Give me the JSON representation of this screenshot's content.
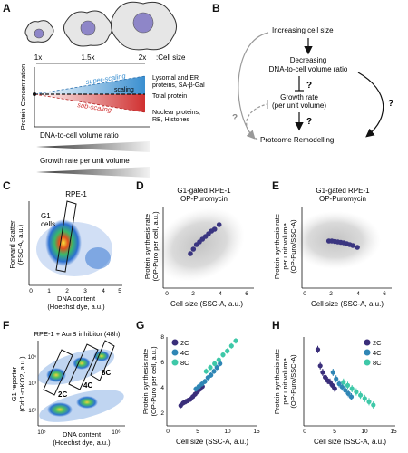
{
  "panels": {
    "a": "A",
    "b": "B",
    "c": "C",
    "d": "D",
    "e": "E",
    "f": "F",
    "g": "G",
    "h": "H"
  },
  "panel_a": {
    "sizes": [
      "1x",
      "1.5x",
      "2x"
    ],
    "cell_size_label": ":Cell size",
    "ylabel": "Protein Concentration",
    "super_scaling": "super-scaling",
    "scaling": "scaling",
    "sub_scaling": "sub-scaling",
    "label_super_1": "Lysomal and ER",
    "label_super_2": "proteins, SA-β-Gal",
    "label_scaling": "Total protein",
    "label_sub_1": "Nuclear proteins,",
    "label_sub_2": "RB, Histones",
    "bar1": "DNA-to-cell volume ratio",
    "bar2": "Growth rate per unit volume",
    "colors": {
      "super": "#3a8fd0",
      "sub": "#d03030"
    }
  },
  "panel_b": {
    "node1": "Increasing cell size",
    "node2_1": "Decreasing",
    "node2_2": "DNA-to-cell volume ratio",
    "node3_1": "Growth rate",
    "node3_2": "(per unit volume)",
    "node4": "Proteome Remodelling",
    "q": "?"
  },
  "panel_c": {
    "title": "RPE-1",
    "gate": "G1",
    "gate2": "cells",
    "xlabel_1": "DNA content",
    "xlabel_2": "(Hoechst dye, a.u.)",
    "ylabel_1": "Forward Scatter",
    "ylabel_2": "(FSC-A, a.u.)",
    "xticks": [
      "0",
      "1",
      "2",
      "3",
      "4",
      "5"
    ]
  },
  "panel_d": {
    "title_1": "G1-gated RPE-1",
    "title_2": "OP-Puromycin",
    "xlabel": "Cell size (SSC-A, a.u.)",
    "ylabel_1": "Protein synthesis rate",
    "ylabel_2": "(OP-Puro per cell, a.u.)",
    "xticks": [
      "0",
      "2",
      "4",
      "6"
    ]
  },
  "panel_e": {
    "title_1": "G1-gated RPE-1",
    "title_2": "OP-Puromycin",
    "xlabel": "Cell size (SSC-A, a.u.)",
    "ylabel_1": "Protein synthesis rate",
    "ylabel_2": "per unit volume",
    "ylabel_3": "(OP-Puro/SSC-A)",
    "xticks": [
      "0",
      "2",
      "4",
      "6"
    ]
  },
  "panel_f": {
    "title": "RPE-1 + AurB inhibitor (48h)",
    "gates": [
      "2C",
      "4C",
      "8C"
    ],
    "xlabel_1": "DNA content",
    "xlabel_2": "(Hoechst dye, a.u.)",
    "ylabel_1": "G1 reporter",
    "ylabel_2": "(Cdt1-mKO2, a.u.)",
    "yticks": [
      "10⁴",
      "10³",
      "10²"
    ],
    "xticks": [
      "10⁵",
      "10⁶"
    ]
  },
  "panel_g": {
    "legend": [
      "2C",
      "4C",
      "8C"
    ],
    "xlabel": "Cell size (SSC-A, a.u.)",
    "ylabel_1": "Protein synthesis rate",
    "ylabel_2": "(OP-Puro per cell, a.u.)",
    "xticks": [
      "0",
      "5",
      "10",
      "15"
    ],
    "yticks": [
      "2",
      "4",
      "6",
      "8"
    ]
  },
  "panel_h": {
    "legend": [
      "2C",
      "4C",
      "8C"
    ],
    "xlabel": "Cell size (SSC-A, a.u.)",
    "ylabel_1": "Protein synthesis rate",
    "ylabel_2": "per unit volume",
    "ylabel_3": "(OP-Puro/SSC-A)",
    "xticks": [
      "0",
      "5",
      "10",
      "15"
    ]
  },
  "chart_data": [
    {
      "type": "scatter",
      "panel": "D",
      "x": [
        1.8,
        2.0,
        2.2,
        2.4,
        2.6,
        2.8,
        3.0,
        3.2,
        3.4,
        3.7
      ],
      "y": [
        3.8,
        4.3,
        4.8,
        5.1,
        5.4,
        5.7,
        6.0,
        6.3,
        6.5,
        7.0
      ],
      "xlim": [
        0,
        6
      ],
      "color": "#3a3580"
    },
    {
      "type": "scatter",
      "panel": "E",
      "x": [
        1.8,
        2.0,
        2.2,
        2.4,
        2.6,
        2.8,
        3.0,
        3.2,
        3.4,
        3.7
      ],
      "y": [
        5.2,
        5.2,
        5.15,
        5.1,
        5.05,
        5.0,
        4.9,
        4.8,
        4.7,
        4.5
      ],
      "xlim": [
        0,
        6
      ],
      "color": "#3a3580"
    },
    {
      "type": "scatter",
      "panel": "G",
      "xlim": [
        0,
        15
      ],
      "ylim": [
        2,
        9
      ],
      "series": [
        {
          "name": "2C",
          "color": "#3a2e7a",
          "x": [
            2.3,
            2.7,
            3.1,
            3.5,
            3.9,
            4.3,
            4.7,
            5.1,
            5.5,
            5.9
          ],
          "y": [
            2.6,
            2.8,
            2.9,
            3.0,
            3.1,
            3.3,
            3.5,
            3.7,
            3.9,
            4.1
          ]
        },
        {
          "name": "4C",
          "color": "#2f86b5",
          "x": [
            4.8,
            5.3,
            5.8,
            6.3,
            6.8,
            7.3,
            7.8,
            8.3,
            8.8
          ],
          "y": [
            3.9,
            4.1,
            4.3,
            4.5,
            4.8,
            5.0,
            5.3,
            5.6,
            5.9
          ]
        },
        {
          "name": "8C",
          "color": "#3ec8a8",
          "x": [
            6.5,
            7.2,
            7.9,
            8.6,
            9.3,
            10.0,
            10.7,
            11.4
          ],
          "y": [
            5.3,
            5.6,
            5.9,
            6.2,
            6.6,
            6.9,
            7.3,
            7.7
          ]
        }
      ]
    },
    {
      "type": "scatter",
      "panel": "H",
      "xlim": [
        0,
        15
      ],
      "series": [
        {
          "name": "2C",
          "color": "#3a2e7a",
          "x": [
            2.3,
            2.7,
            3.1,
            3.5,
            3.9,
            4.3,
            4.7,
            5.1
          ],
          "y": [
            0.84,
            0.74,
            0.7,
            0.67,
            0.65,
            0.64,
            0.62,
            0.6
          ]
        },
        {
          "name": "4C",
          "color": "#2f86b5",
          "x": [
            4.8,
            5.3,
            5.8,
            6.3,
            6.8,
            7.3,
            7.8
          ],
          "y": [
            0.7,
            0.66,
            0.63,
            0.61,
            0.59,
            0.57,
            0.55
          ]
        },
        {
          "name": "8C",
          "color": "#3ec8a8",
          "x": [
            6.5,
            7.2,
            7.9,
            8.6,
            9.3,
            10.0,
            10.7,
            11.4
          ],
          "y": [
            0.64,
            0.62,
            0.6,
            0.58,
            0.56,
            0.54,
            0.52,
            0.5
          ]
        }
      ]
    }
  ]
}
